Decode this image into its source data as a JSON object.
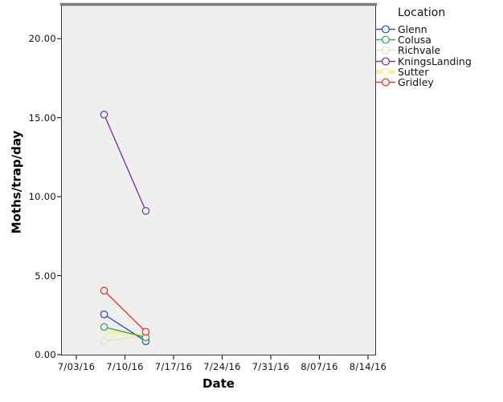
{
  "chart_data": {
    "type": "line",
    "title": "",
    "xlabel": "Date",
    "ylabel": "Moths/trap/day",
    "x_tick_labels": [
      "7/03/16",
      "7/10/16",
      "7/17/16",
      "7/24/16",
      "7/31/16",
      "8/07/16",
      "8/14/16"
    ],
    "x_tick_days": [
      0,
      7,
      14,
      21,
      28,
      35,
      42
    ],
    "y_tick_labels": [
      "0.00",
      "5.00",
      "10.00",
      "15.00",
      "20.00"
    ],
    "y_ticks": [
      0,
      5,
      10,
      15,
      20
    ],
    "ylim": [
      0,
      22.3
    ],
    "grid": false,
    "marker": "circle-open",
    "x_dates": [
      "7/07/16",
      "7/13/16"
    ],
    "x_days": [
      4,
      10
    ],
    "series": [
      {
        "name": "Glenn",
        "color": "#4353a4",
        "values": [
          2.55,
          0.85
        ],
        "line_width": 1.4
      },
      {
        "name": "Colusa",
        "color": "#42a45f",
        "values": [
          1.75,
          1.1
        ],
        "line_width": 1.4
      },
      {
        "name": "Richvale",
        "color": "#dfe3c2",
        "values": [
          0.85,
          1.2
        ],
        "line_width": 1.6
      },
      {
        "name": "KningsLanding",
        "color": "#7b3d9c",
        "values": [
          15.2,
          9.1
        ],
        "line_width": 1.4
      },
      {
        "name": "Sutter",
        "color": "#f1f2ad",
        "values": [
          1.45,
          1.25
        ],
        "line_width": 5.0
      },
      {
        "name": "Gridley",
        "color": "#da3b3c",
        "values": [
          4.05,
          1.45
        ],
        "line_width": 1.4
      }
    ],
    "legend": {
      "title": "Location",
      "position": "right"
    },
    "colors": {
      "plot_background": "#f0eff0",
      "outer_background": "#ffffff",
      "frame": "#3c3c3c",
      "frame_top": "#7c7c7c",
      "text": "#000000"
    }
  }
}
